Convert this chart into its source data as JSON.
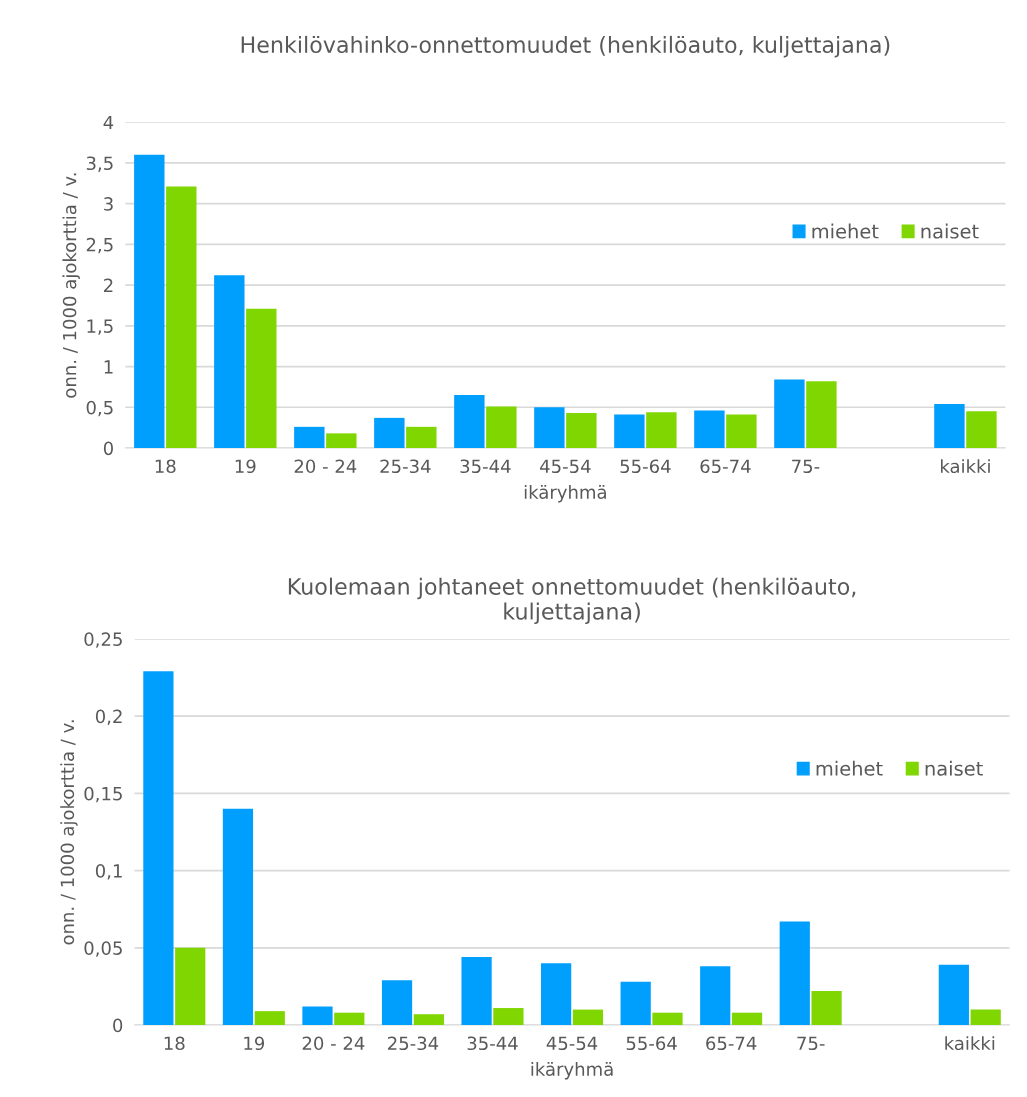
{
  "chart_data": [
    {
      "type": "bar",
      "title": "Henkilövahinko-onnettomuudet (henkilöauto, kuljettajana)",
      "xlabel": "ikäryhmä",
      "ylabel": "onn. / 1000 ajokorttia / v.",
      "categories": [
        "18",
        "19",
        "20 - 24",
        "25-34",
        "35-44",
        "45-54",
        "55-64",
        "65-74",
        "75-",
        null,
        "kaikki"
      ],
      "series": [
        {
          "name": "miehet",
          "color": "#009ffe",
          "values": [
            3.6,
            2.12,
            0.26,
            0.37,
            0.65,
            0.5,
            0.41,
            0.46,
            0.84,
            null,
            0.54
          ]
        },
        {
          "name": "naiset",
          "color": "#80d600",
          "values": [
            3.21,
            1.71,
            0.18,
            0.26,
            0.51,
            0.43,
            0.44,
            0.41,
            0.82,
            null,
            0.45
          ]
        }
      ],
      "ylim": [
        0,
        4
      ],
      "yticks": [
        0,
        {
          "value": 0.5,
          "label": "0,5"
        },
        1,
        {
          "value": 1.5,
          "label": "1,5"
        },
        2,
        {
          "value": 2.5,
          "label": "2,5"
        },
        3,
        {
          "value": 3.5,
          "label": "3,5"
        },
        4
      ],
      "grid": "y",
      "legend": "right"
    },
    {
      "type": "bar",
      "title": "Kuolemaan johtaneet onnettomuudet (henkilöauto,\nkuljettajana)",
      "xlabel": "ikäryhmä",
      "ylabel": "onn. / 1000 ajokorttia / v.",
      "categories": [
        "18",
        "19",
        "20 - 24",
        "25-34",
        "35-44",
        "45-54",
        "55-64",
        "65-74",
        "75-",
        null,
        "kaikki"
      ],
      "series": [
        {
          "name": "miehet",
          "color": "#009ffe",
          "values": [
            0.229,
            0.14,
            0.012,
            0.029,
            0.044,
            0.04,
            0.028,
            0.038,
            0.067,
            null,
            0.039
          ]
        },
        {
          "name": "naiset",
          "color": "#80d600",
          "values": [
            0.05,
            0.009,
            0.008,
            0.007,
            0.011,
            0.01,
            0.008,
            0.008,
            0.022,
            null,
            0.01
          ]
        }
      ],
      "ylim": [
        0,
        0.25
      ],
      "yticks": [
        0,
        {
          "value": 0.05,
          "label": "0,05"
        },
        {
          "value": 0.1,
          "label": "0,1"
        },
        {
          "value": 0.15,
          "label": "0,15"
        },
        {
          "value": 0.2,
          "label": "0,2"
        },
        {
          "value": 0.25,
          "label": "0,25"
        }
      ],
      "grid": "y",
      "legend": "right"
    }
  ]
}
